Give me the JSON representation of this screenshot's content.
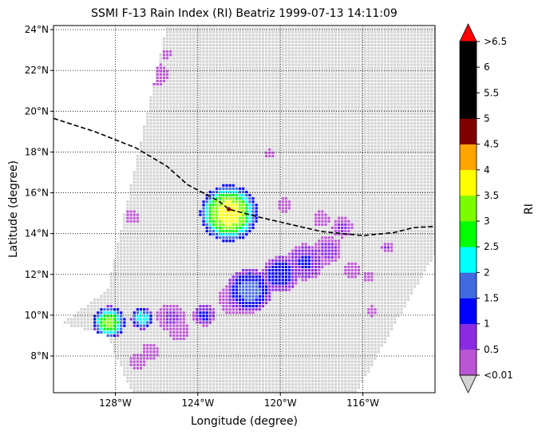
{
  "chart_data": {
    "type": "heatmap",
    "title": "SSMI F-13 Rain Index (RI) Beatriz 1999-07-13 14:11:09",
    "xlabel": "Longitude (degree)",
    "ylabel": "Latitude (degree)",
    "xlim": [
      -131.0,
      -112.5
    ],
    "ylim": [
      6.2,
      24.2
    ],
    "x_ticks": [
      {
        "value": -128,
        "label": "128°W"
      },
      {
        "value": -124,
        "label": "124°W"
      },
      {
        "value": -120,
        "label": "120°W"
      },
      {
        "value": -116,
        "label": "116°W"
      }
    ],
    "y_ticks": [
      {
        "value": 8,
        "label": "8°N"
      },
      {
        "value": 10,
        "label": "10°N"
      },
      {
        "value": 12,
        "label": "12°N"
      },
      {
        "value": 14,
        "label": "14°N"
      },
      {
        "value": 16,
        "label": "16°N"
      },
      {
        "value": 18,
        "label": "18°N"
      },
      {
        "value": 20,
        "label": "20°N"
      },
      {
        "value": 22,
        "label": "22°N"
      },
      {
        "value": 24,
        "label": "24°N"
      }
    ],
    "grid": true,
    "grid_style": "dotted",
    "swath_polygon": [
      [
        -125.5,
        24.2
      ],
      [
        -112.5,
        24.2
      ],
      [
        -112.5,
        13.0
      ],
      [
        -116.3,
        6.2
      ],
      [
        -127.2,
        6.2
      ],
      [
        -128.4,
        9.0
      ],
      [
        -130.6,
        9.6
      ],
      [
        -128.4,
        11.2
      ]
    ],
    "track_line": [
      [
        -131.0,
        19.65
      ],
      [
        -129.0,
        19.0
      ],
      [
        -127.0,
        18.2
      ],
      [
        -125.5,
        17.3
      ],
      [
        -124.5,
        16.4
      ],
      [
        -123.0,
        15.6
      ],
      [
        -122.5,
        15.2
      ],
      [
        -121.0,
        14.8
      ],
      [
        -119.5,
        14.45
      ],
      [
        -118.0,
        14.1
      ],
      [
        -116.0,
        13.9
      ],
      [
        -114.5,
        14.05
      ],
      [
        -113.5,
        14.3
      ],
      [
        -112.5,
        14.35
      ]
    ],
    "track_style": "dashed black",
    "center_marker": {
      "lon": -122.5,
      "lat": 15.2,
      "color": "#8b0000"
    },
    "colorbar": {
      "label": "RI",
      "extend": "both",
      "under_color": "#d3d3d3",
      "over_color": "#ff0000",
      "bins": [
        {
          "from": "<0.01",
          "to": "0.5",
          "color": "#ba55d3"
        },
        {
          "from": "0.5",
          "to": "1",
          "color": "#8a2be2"
        },
        {
          "from": "1",
          "to": "1.5",
          "color": "#0000ff"
        },
        {
          "from": "1.5",
          "to": "2",
          "color": "#4169e1"
        },
        {
          "from": "2",
          "to": "2.5",
          "color": "#00ffff"
        },
        {
          "from": "2.5",
          "to": "3",
          "color": "#00ff00"
        },
        {
          "from": "3",
          "to": "3.5",
          "color": "#7cfc00"
        },
        {
          "from": "3.5",
          "to": "4",
          "color": "#ffff00"
        },
        {
          "from": "4",
          "to": "4.5",
          "color": "#ffa500"
        },
        {
          "from": "4.5",
          "to": "5",
          "color": "#800000"
        },
        {
          "from": "5",
          "to": "5.5",
          "color": "#000000"
        },
        {
          "from": "5.5",
          "to": "6",
          "color": "#000000"
        },
        {
          "from": "6",
          "to": ">6.5",
          "color": "#000000"
        }
      ],
      "tick_labels": [
        "<0.01",
        "0.5",
        "1",
        "1.5",
        "2",
        "2.5",
        "3",
        "3.5",
        "4",
        "4.5",
        "5",
        "5.5",
        "6",
        ">6.5"
      ]
    },
    "rain_features": [
      {
        "lon": -122.5,
        "lat": 15.0,
        "radius": 1.4,
        "peak": 4.0
      },
      {
        "lon": -128.3,
        "lat": 9.65,
        "radius": 0.8,
        "peak": 3.2
      },
      {
        "lon": -126.7,
        "lat": 9.85,
        "radius": 0.55,
        "peak": 2.5
      },
      {
        "lon": -125.3,
        "lat": 9.9,
        "radius": 0.7,
        "peak": 0.6
      },
      {
        "lon": -123.7,
        "lat": 10.0,
        "radius": 0.55,
        "peak": 1.2
      },
      {
        "lon": -121.5,
        "lat": 11.2,
        "radius": 1.1,
        "peak": 1.8
      },
      {
        "lon": -120.0,
        "lat": 12.0,
        "radius": 0.9,
        "peak": 1.5
      },
      {
        "lon": -118.8,
        "lat": 12.6,
        "radius": 0.9,
        "peak": 1.1
      },
      {
        "lon": -117.7,
        "lat": 13.2,
        "radius": 0.7,
        "peak": 0.7
      },
      {
        "lon": -117.0,
        "lat": 14.3,
        "radius": 0.5,
        "peak": 0.6
      },
      {
        "lon": -122.2,
        "lat": 10.8,
        "radius": 0.8,
        "peak": 0.6
      },
      {
        "lon": -124.9,
        "lat": 9.2,
        "radius": 0.5,
        "peak": 0.5
      },
      {
        "lon": -126.3,
        "lat": 8.2,
        "radius": 0.45,
        "peak": 0.4
      },
      {
        "lon": -126.9,
        "lat": 7.7,
        "radius": 0.4,
        "peak": 0.4
      },
      {
        "lon": -119.8,
        "lat": 15.4,
        "radius": 0.35,
        "peak": 0.4
      },
      {
        "lon": -118.0,
        "lat": 14.7,
        "radius": 0.4,
        "peak": 0.5
      },
      {
        "lon": -116.5,
        "lat": 12.2,
        "radius": 0.4,
        "peak": 0.4
      },
      {
        "lon": -115.7,
        "lat": 11.9,
        "radius": 0.3,
        "peak": 0.3
      },
      {
        "lon": -114.8,
        "lat": 13.3,
        "radius": 0.3,
        "peak": 0.6
      },
      {
        "lon": -127.2,
        "lat": 14.8,
        "radius": 0.35,
        "peak": 0.3
      },
      {
        "lon": -126.0,
        "lat": 21.8,
        "radius": 0.55,
        "peak": 0.3
      },
      {
        "lon": -125.5,
        "lat": 22.8,
        "radius": 0.25,
        "peak": 0.3
      },
      {
        "lon": -120.5,
        "lat": 17.9,
        "radius": 0.25,
        "peak": 0.3
      },
      {
        "lon": -115.6,
        "lat": 10.2,
        "radius": 0.25,
        "peak": 0.3
      }
    ]
  }
}
